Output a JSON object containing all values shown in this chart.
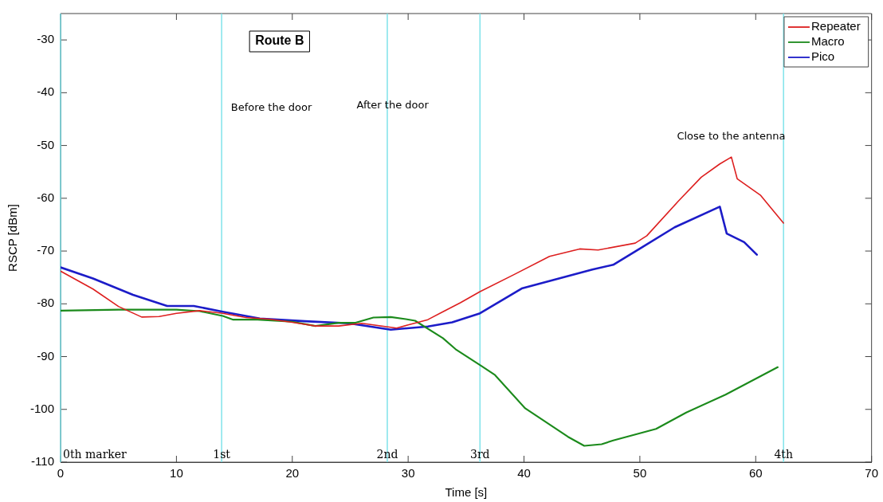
{
  "chart_data": {
    "type": "line",
    "title": "Route B",
    "xlabel": "Time [s]",
    "ylabel": "RSCP [dBm]",
    "xlim": [
      0,
      70
    ],
    "xticks": [
      0,
      10,
      20,
      30,
      40,
      50,
      60,
      70
    ],
    "ylim": [
      -110,
      -25
    ],
    "yticks": [
      -110,
      -100,
      -90,
      -80,
      -70,
      -60,
      -50,
      -40,
      -30
    ],
    "grid": false,
    "legend": "top right",
    "marker": "none",
    "line_style": "solid",
    "series": [
      {
        "name": "Repeater",
        "color": "#dd1f1f",
        "x": [
          0,
          2.8,
          5,
          7,
          8.5,
          10,
          12,
          14,
          16,
          18,
          20,
          22,
          24,
          26,
          28,
          29,
          30,
          31.7,
          33,
          34.5,
          36.2,
          39.1,
          42.2,
          44.8,
          46.4,
          49.6,
          50.6,
          53.3,
          55.3,
          56.9,
          57.9,
          58.4,
          60.4,
          62.4
        ],
        "values": [
          -73.8,
          -77.2,
          -80.5,
          -82.5,
          -82.4,
          -81.8,
          -81.3,
          -81.8,
          -82.6,
          -82.9,
          -83.5,
          -84.2,
          -84.2,
          -83.7,
          -84.3,
          -84.6,
          -84.0,
          -83.0,
          -81.5,
          -79.8,
          -77.7,
          -74.5,
          -71.0,
          -69.6,
          -69.8,
          -68.5,
          -67.1,
          -60.6,
          -56.0,
          -53.5,
          -52.2,
          -56.3,
          -59.4,
          -64.7
        ]
      },
      {
        "name": "Macro",
        "color": "#1b8a1b",
        "x": [
          0,
          5,
          10,
          12,
          14,
          14.9,
          17,
          20,
          22,
          24,
          25.4,
          27,
          28.5,
          29.8,
          30.6,
          33,
          34.1,
          36.2,
          37.5,
          40.1,
          43.8,
          45.2,
          46.7,
          47.7,
          51.4,
          54,
          57.4,
          61.9
        ],
        "values": [
          -81.3,
          -81.1,
          -81.1,
          -81.4,
          -82.3,
          -83.0,
          -83.0,
          -83.4,
          -84.2,
          -83.6,
          -83.6,
          -82.6,
          -82.5,
          -82.9,
          -83.2,
          -86.5,
          -88.6,
          -91.6,
          -93.5,
          -99.8,
          -105.2,
          -106.9,
          -106.6,
          -105.9,
          -103.7,
          -100.6,
          -97.2,
          -92.0
        ]
      },
      {
        "name": "Pico",
        "color": "#1c1cc8",
        "x": [
          0,
          2.8,
          6.25,
          9.2,
          11.5,
          14,
          17.2,
          21.1,
          24.9,
          28.5,
          31.7,
          33.8,
          36.2,
          39.8,
          42.5,
          45.9,
          47.7,
          50.1,
          53,
          56.9,
          57.5,
          59,
          60.1
        ],
        "values": [
          -73.1,
          -75.2,
          -78.3,
          -80.4,
          -80.4,
          -81.5,
          -82.8,
          -83.3,
          -83.7,
          -84.9,
          -84.3,
          -83.5,
          -81.8,
          -77.1,
          -75.5,
          -73.5,
          -72.6,
          -69.4,
          -65.5,
          -61.6,
          -66.7,
          -68.3,
          -70.7
        ]
      }
    ],
    "ref_lines": [
      {
        "axis": "x",
        "value": 0,
        "label": "0th marker",
        "color": "#7fe3ea"
      },
      {
        "axis": "x",
        "value": 13.9,
        "label": "1st",
        "color": "#7fe3ea"
      },
      {
        "axis": "x",
        "value": 28.2,
        "label": "2nd",
        "color": "#7fe3ea"
      },
      {
        "axis": "x",
        "value": 36.2,
        "label": "3rd",
        "color": "#7fe3ea"
      },
      {
        "axis": "x",
        "value": 62.4,
        "label": "4th",
        "color": "#7fe3ea"
      }
    ],
    "annotations": [
      "Before the door",
      "After the door",
      "Close to the antenna"
    ]
  }
}
